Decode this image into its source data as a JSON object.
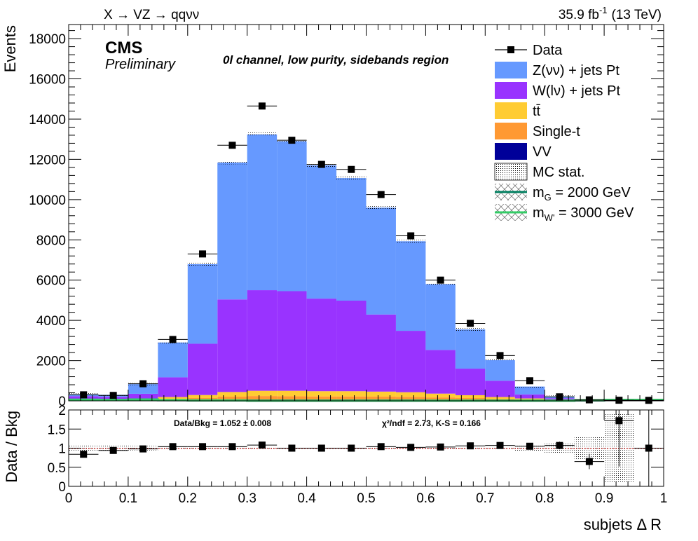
{
  "header": {
    "process": "X → VZ → qqνν",
    "lumi": "35.9 fb",
    "lumi_sup": "-1",
    "energy": "(13 TeV)",
    "cms": "CMS",
    "preliminary": "Preliminary",
    "channel": "0l channel, low purity, sidebands region"
  },
  "chart_data": [
    {
      "type": "bar",
      "stacked": true,
      "xlabel": "subjets Δ R",
      "ylabel": "Events",
      "xlim": [
        0,
        1
      ],
      "ylim": [
        0,
        18700
      ],
      "x_ticks": [
        "0",
        "0.1",
        "0.2",
        "0.3",
        "0.4",
        "0.5",
        "0.6",
        "0.7",
        "0.8",
        "0.9",
        "1"
      ],
      "y_ticks": [
        "0",
        "2000",
        "4000",
        "6000",
        "8000",
        "10000",
        "12000",
        "14000",
        "16000",
        "18000"
      ],
      "bin_edges": [
        0,
        0.05,
        0.1,
        0.15,
        0.2,
        0.25,
        0.3,
        0.35,
        0.4,
        0.45,
        0.5,
        0.55,
        0.6,
        0.65,
        0.7,
        0.75,
        0.8,
        0.85,
        0.9,
        0.95,
        1.0
      ],
      "series": [
        {
          "name": "VV",
          "color": "#000099",
          "values": [
            20,
            20,
            20,
            30,
            40,
            60,
            70,
            70,
            70,
            70,
            70,
            70,
            60,
            50,
            40,
            30,
            20,
            10,
            5,
            0
          ]
        },
        {
          "name": "Single-t",
          "color": "#ff9933",
          "values": [
            20,
            20,
            30,
            60,
            100,
            150,
            170,
            160,
            150,
            150,
            140,
            130,
            110,
            90,
            60,
            40,
            20,
            10,
            5,
            0
          ]
        },
        {
          "name": "tt̄",
          "color": "#ffcc33",
          "values": [
            50,
            50,
            60,
            100,
            150,
            230,
            260,
            270,
            260,
            260,
            250,
            230,
            190,
            140,
            90,
            50,
            30,
            10,
            5,
            0
          ]
        },
        {
          "name": "W(lν) + jets Pt",
          "color": "#9933ff",
          "values": [
            140,
            110,
            240,
            980,
            2550,
            4600,
            5000,
            4950,
            4600,
            4500,
            3830,
            3050,
            2170,
            1320,
            810,
            200,
            60,
            15,
            5,
            0
          ]
        },
        {
          "name": "Z(νν) + jets Pt",
          "color": "#6699ff",
          "values": [
            100,
            100,
            480,
            1730,
            3950,
            6800,
            7740,
            7450,
            6620,
            6090,
            5310,
            4450,
            3270,
            1950,
            1020,
            390,
            90,
            25,
            10,
            0
          ]
        }
      ],
      "data": {
        "name": "Data",
        "values": [
          300,
          270,
          850,
          3050,
          7300,
          12700,
          14650,
          12950,
          11750,
          11500,
          10250,
          8200,
          6000,
          3850,
          2250,
          1000,
          200,
          50,
          30,
          25
        ]
      },
      "mc_stat_label": "MC stat.",
      "signals": [
        {
          "name": "m",
          "sub": "G",
          "mass": " = 2000 GeV",
          "color": "#007f5f"
        },
        {
          "name": "m",
          "sub": "W'",
          "mass": " = 3000 GeV",
          "color": "#33cc66"
        }
      ]
    },
    {
      "type": "scatter",
      "xlabel": "subjets Δ R",
      "ylabel": "Data / Bkg",
      "xlim": [
        0,
        1
      ],
      "ylim": [
        0,
        2
      ],
      "x_ticks": [
        "0",
        "0.1",
        "0.2",
        "0.3",
        "0.4",
        "0.5",
        "0.6",
        "0.7",
        "0.8",
        "0.9",
        "1"
      ],
      "y_ticks": [
        "0",
        "0.5",
        "1",
        "1.5",
        "2"
      ],
      "ratio": [
        0.84,
        0.94,
        0.98,
        1.04,
        1.04,
        1.04,
        1.08,
        1.0,
        1.0,
        1.0,
        1.04,
        1.02,
        1.03,
        1.06,
        1.07,
        1.05,
        1.07,
        0.65,
        1.72,
        1.0
      ],
      "ratio_err": [
        0.07,
        0.07,
        0.04,
        0.02,
        0.015,
        0.01,
        0.01,
        0.01,
        0.01,
        0.01,
        0.012,
        0.013,
        0.015,
        0.02,
        0.025,
        0.04,
        0.1,
        0.2,
        1.2,
        2.5
      ],
      "mc_err": [
        0.1,
        0.1,
        0.06,
        0.03,
        0.02,
        0.015,
        0.015,
        0.015,
        0.015,
        0.015,
        0.015,
        0.015,
        0.02,
        0.03,
        0.04,
        0.08,
        0.15,
        0.3,
        0.9,
        0.0
      ],
      "annotations": {
        "data_bkg": "Data/Bkg = 1.052 ± 0.008",
        "chi2": "χ²/ndf = 2.73,   K-S = 0.166"
      }
    }
  ]
}
